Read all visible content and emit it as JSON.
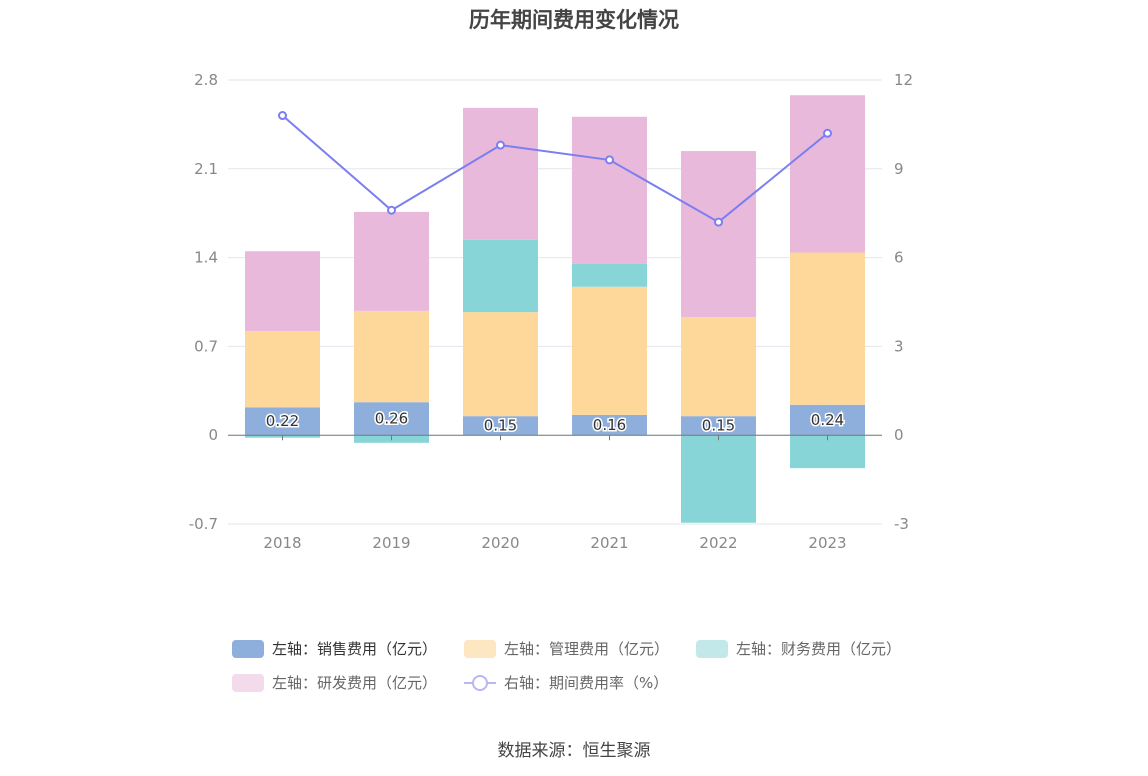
{
  "title": "历年期间费用变化情况",
  "source": "数据来源：恒生聚源",
  "chart_data": {
    "type": "bar",
    "stacked": true,
    "categories": [
      "2018",
      "2019",
      "2020",
      "2021",
      "2022",
      "2023"
    ],
    "left_axis": {
      "min": -0.7,
      "max": 2.8,
      "ticks": [
        "2.8",
        "2.1",
        "1.4",
        "0.7",
        "0",
        "-0.7"
      ]
    },
    "right_axis": {
      "min": -3,
      "max": 12,
      "ticks": [
        "12",
        "9",
        "6",
        "3",
        "0",
        "-3"
      ]
    },
    "grid": true,
    "legend_position": "bottom",
    "series": [
      {
        "name": "左轴：销售费用（亿元）",
        "color": "#8eaedc",
        "axis": "left",
        "values": [
          0.22,
          0.26,
          0.15,
          0.16,
          0.15,
          0.24
        ],
        "labels": [
          "0.22",
          "0.26",
          "0.15",
          "0.16",
          "0.15",
          "0.24"
        ]
      },
      {
        "name": "左轴：管理费用（亿元）",
        "color": "#fed89b",
        "axis": "left",
        "values": [
          0.6,
          0.72,
          0.82,
          1.01,
          0.78,
          1.2
        ]
      },
      {
        "name": "左轴：财务费用（亿元）",
        "color": "#88d5d8",
        "axis": "left",
        "values": [
          -0.02,
          -0.06,
          0.57,
          0.18,
          -0.69,
          -0.26
        ]
      },
      {
        "name": "左轴：研发费用（亿元）",
        "color": "#e8b9da",
        "axis": "left",
        "values": [
          0.63,
          0.78,
          1.04,
          1.16,
          1.31,
          1.24
        ]
      },
      {
        "name": "右轴：期间费用率（%）",
        "color": "#7b7ef0",
        "axis": "right",
        "type": "line",
        "values": [
          10.8,
          7.6,
          9.8,
          9.3,
          7.2,
          10.2
        ]
      }
    ]
  },
  "legend_colors": {
    "sales": "#8eaedc",
    "admin": "#fde7c2",
    "finance": "#c2e8ea",
    "rd": "#f4dbeb"
  }
}
